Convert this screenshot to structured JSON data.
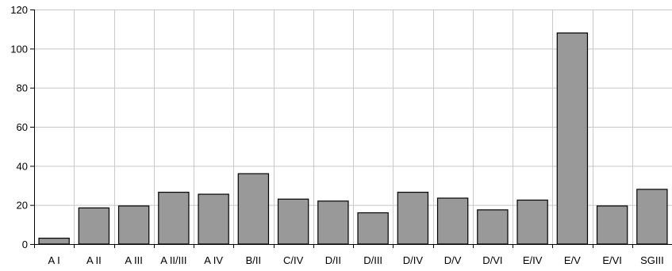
{
  "chart_data": {
    "type": "bar",
    "title": "",
    "xlabel": "",
    "ylabel": "",
    "categories": [
      "A I",
      "A II",
      "A III",
      "A II/III",
      "A IV",
      "B/II",
      "C/IV",
      "D/II",
      "D/III",
      "D/IV",
      "D/V",
      "D/VI",
      "E/IV",
      "E/V",
      "E/VI",
      "SGIII"
    ],
    "values": [
      3,
      18.5,
      19.5,
      26.5,
      25.5,
      36,
      23,
      22,
      16,
      26.5,
      23.5,
      17.5,
      22.5,
      108,
      19.5,
      28
    ],
    "ylim": [
      0,
      120
    ],
    "yticks": [
      0,
      20,
      40,
      60,
      80,
      100,
      120
    ],
    "grid": true,
    "legend": "none",
    "bar_color": "#999999",
    "grid_color": "#c8c8c8"
  }
}
